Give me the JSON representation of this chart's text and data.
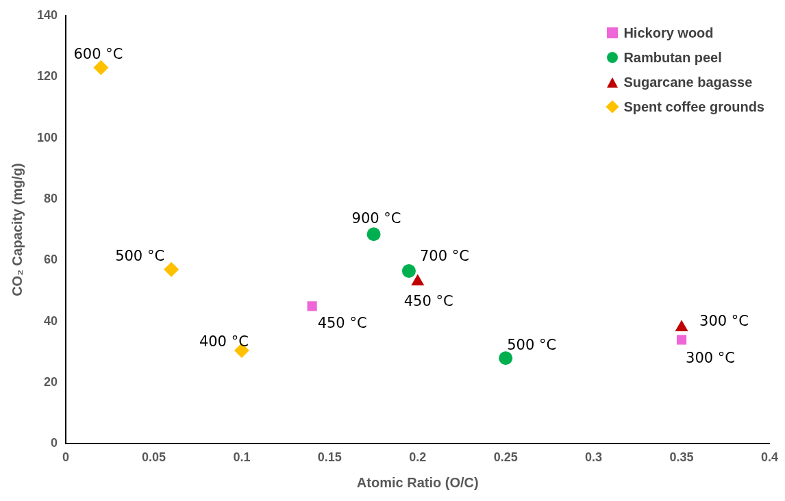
{
  "chart_data": {
    "type": "scatter",
    "xlabel": "Atomic Ratio (O/C)",
    "ylabel": "CO₂ Capacity (mg/g)",
    "xlim": [
      0,
      0.4
    ],
    "xticks": [
      0,
      0.05,
      0.1,
      0.15,
      0.2,
      0.25,
      0.3,
      0.35,
      0.4
    ],
    "ylim": [
      0,
      140
    ],
    "yticks": [
      0,
      20,
      40,
      60,
      80,
      100,
      120,
      140
    ],
    "grid": false,
    "legend": "top right",
    "series": [
      {
        "name": "Hickory wood",
        "color": "#ee66d8",
        "marker": "square",
        "x": [
          0.14,
          0.35
        ],
        "values": [
          45,
          34
        ]
      },
      {
        "name": "Rambutan peel",
        "color": "#00b050",
        "marker": "circle",
        "x": [
          0.175,
          0.195,
          0.25
        ],
        "values": [
          68.5,
          56.5,
          28
        ]
      },
      {
        "name": "Sugarcane bagasse",
        "color": "#c00000",
        "marker": "triangle",
        "x": [
          0.2,
          0.35
        ],
        "values": [
          53,
          38
        ]
      },
      {
        "name": "Spent coffee grounds",
        "color": "#ffc000",
        "marker": "diamond",
        "x": [
          0.02,
          0.06,
          0.1
        ],
        "values": [
          123,
          57,
          30.5
        ]
      }
    ],
    "annotations": [
      {
        "text": "450 °C",
        "x": 0.14,
        "y": 45
      },
      {
        "text": "300 °C",
        "x": 0.35,
        "y": 34
      },
      {
        "text": "900 °C",
        "x": 0.175,
        "y": 68.5
      },
      {
        "text": "700 °C",
        "x": 0.195,
        "y": 56.5
      },
      {
        "text": "500 °C",
        "x": 0.25,
        "y": 28
      },
      {
        "text": "450 °C",
        "x": 0.2,
        "y": 53
      },
      {
        "text": "300 °C",
        "x": 0.35,
        "y": 38
      },
      {
        "text": "600 °C",
        "x": 0.02,
        "y": 123
      },
      {
        "text": "500 °C",
        "x": 0.06,
        "y": 57
      },
      {
        "text": "400 °C",
        "x": 0.1,
        "y": 30.5
      }
    ]
  }
}
